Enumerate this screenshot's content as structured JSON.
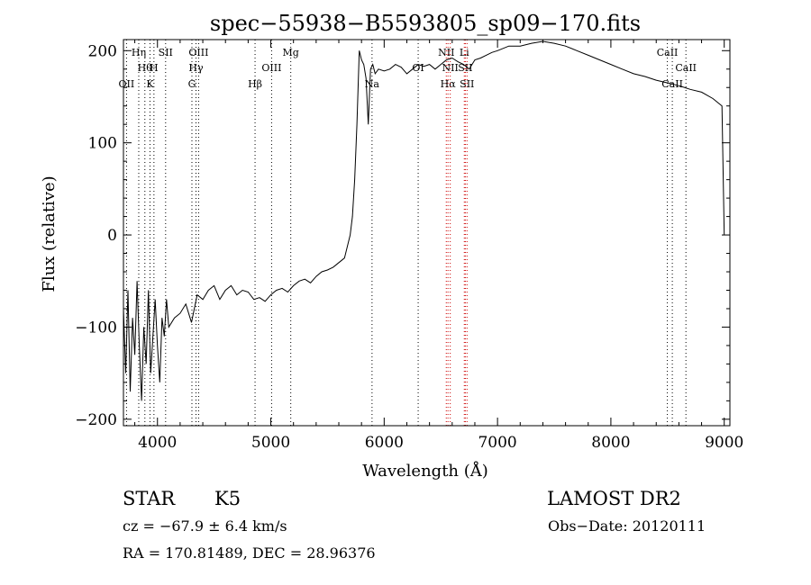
{
  "chart_data": {
    "type": "line",
    "title": "spec−55938−B5593805_sp09−170.fits",
    "xlabel": "Wavelength (Å)",
    "ylabel": "Flux (relative)",
    "xlim": [
      3700,
      9050
    ],
    "ylim": [
      -207,
      212
    ],
    "grid": false,
    "x_ticks": [
      {
        "value": 4000,
        "label": "4000"
      },
      {
        "value": 5000,
        "label": "5000"
      },
      {
        "value": 6000,
        "label": "6000"
      },
      {
        "value": 7000,
        "label": "7000"
      },
      {
        "value": 8000,
        "label": "8000"
      },
      {
        "value": 9000,
        "label": "9000"
      }
    ],
    "y_ticks": [
      {
        "value": -200,
        "label": "−200"
      },
      {
        "value": -100,
        "label": "−100"
      },
      {
        "value": 0,
        "label": "0"
      },
      {
        "value": 100,
        "label": "100"
      },
      {
        "value": 200,
        "label": "200"
      }
    ],
    "series": [
      {
        "x": [
          3700,
          3720,
          3740,
          3760,
          3780,
          3800,
          3820,
          3840,
          3860,
          3880,
          3900,
          3920,
          3940,
          3960,
          3980,
          4000,
          4020,
          4040,
          4060,
          4080,
          4100,
          4150,
          4200,
          4250,
          4300,
          4350,
          4400,
          4450,
          4500,
          4550,
          4600,
          4650,
          4700,
          4750,
          4800,
          4850,
          4900,
          4950,
          5000,
          5050,
          5100,
          5150,
          5200,
          5250,
          5300,
          5350,
          5400,
          5450,
          5500,
          5550,
          5600,
          5650,
          5680,
          5700,
          5720,
          5740,
          5760,
          5780,
          5800,
          5820,
          5840,
          5860,
          5880,
          5900,
          5920,
          5950,
          6000,
          6050,
          6100,
          6150,
          6200,
          6250,
          6300,
          6350,
          6400,
          6450,
          6500,
          6550,
          6600,
          6650,
          6700,
          6750,
          6800,
          6850,
          6900,
          6950,
          7000,
          7100,
          7200,
          7300,
          7400,
          7500,
          7600,
          7700,
          7800,
          7900,
          8000,
          8100,
          8200,
          8300,
          8400,
          8500,
          8600,
          8700,
          8800,
          8900,
          8980,
          9000
        ],
        "y": [
          -80,
          -150,
          -60,
          -170,
          -90,
          -130,
          -50,
          -120,
          -180,
          -100,
          -140,
          -60,
          -150,
          -110,
          -70,
          -120,
          -160,
          -90,
          -110,
          -70,
          -100,
          -90,
          -85,
          -75,
          -95,
          -65,
          -70,
          -60,
          -55,
          -70,
          -60,
          -55,
          -65,
          -60,
          -62,
          -70,
          -68,
          -72,
          -65,
          -60,
          -58,
          -62,
          -55,
          -50,
          -48,
          -52,
          -45,
          -40,
          -38,
          -35,
          -30,
          -25,
          -10,
          0,
          20,
          60,
          120,
          200,
          190,
          185,
          170,
          120,
          180,
          185,
          175,
          180,
          178,
          180,
          185,
          182,
          175,
          180,
          185,
          183,
          185,
          180,
          185,
          190,
          192,
          188,
          185,
          180,
          190,
          192,
          195,
          198,
          200,
          205,
          205,
          208,
          210,
          208,
          205,
          200,
          195,
          190,
          185,
          180,
          175,
          172,
          168,
          165,
          162,
          158,
          155,
          148,
          140,
          0
        ]
      }
    ],
    "lines": [
      {
        "x": 3727,
        "color": "#000000",
        "labels": [
          {
            "text": "OII",
            "row": 3
          }
        ]
      },
      {
        "x": 3835,
        "color": "#000000",
        "labels": [
          {
            "text": "Hη",
            "row": 1
          }
        ]
      },
      {
        "x": 3889,
        "color": "#000000",
        "labels": [
          {
            "text": "Hθ",
            "row": 2
          }
        ]
      },
      {
        "x": 3934,
        "color": "#000000",
        "labels": [
          {
            "text": "K",
            "row": 3
          }
        ]
      },
      {
        "x": 3969,
        "color": "#000000",
        "labels": [
          {
            "text": "H",
            "row": 2
          }
        ]
      },
      {
        "x": 4072,
        "color": "#000000",
        "labels": [
          {
            "text": "SII",
            "row": 1
          }
        ]
      },
      {
        "x": 4304,
        "color": "#000000",
        "labels": [
          {
            "text": "G",
            "row": 3
          }
        ]
      },
      {
        "x": 4340,
        "color": "#000000",
        "labels": [
          {
            "text": "Hγ",
            "row": 2
          }
        ]
      },
      {
        "x": 4363,
        "color": "#000000",
        "labels": [
          {
            "text": "OIII",
            "row": 1
          }
        ]
      },
      {
        "x": 4861,
        "color": "#000000",
        "labels": [
          {
            "text": "Hβ",
            "row": 3
          }
        ]
      },
      {
        "x": 5007,
        "color": "#000000",
        "labels": [
          {
            "text": "OIII",
            "row": 2
          }
        ]
      },
      {
        "x": 5176,
        "color": "#000000",
        "labels": [
          {
            "text": "Mg",
            "row": 1
          }
        ]
      },
      {
        "x": 5893,
        "color": "#000000",
        "labels": [
          {
            "text": "Na",
            "row": 3
          }
        ]
      },
      {
        "x": 6300,
        "color": "#000000",
        "labels": [
          {
            "text": "OI",
            "row": 2
          }
        ]
      },
      {
        "x": 6548,
        "color": "#cc0000",
        "labels": [
          {
            "text": "NII",
            "row": 1
          }
        ]
      },
      {
        "x": 6563,
        "color": "#cc0000",
        "labels": [
          {
            "text": "Hα",
            "row": 3
          }
        ]
      },
      {
        "x": 6583,
        "color": "#cc0000",
        "labels": [
          {
            "text": "NII",
            "row": 2
          }
        ]
      },
      {
        "x": 6707,
        "color": "#cc0000",
        "labels": [
          {
            "text": "Li",
            "row": 1
          }
        ]
      },
      {
        "x": 6716,
        "color": "#cc0000",
        "labels": [
          {
            "text": "SII",
            "row": 2
          }
        ]
      },
      {
        "x": 6731,
        "color": "#cc0000",
        "labels": [
          {
            "text": "SII",
            "row": 3
          }
        ]
      },
      {
        "x": 8498,
        "color": "#000000",
        "labels": [
          {
            "text": "CaII",
            "row": 1
          }
        ]
      },
      {
        "x": 8542,
        "color": "#000000",
        "labels": [
          {
            "text": "CaII",
            "row": 3
          }
        ]
      },
      {
        "x": 8662,
        "color": "#000000",
        "labels": [
          {
            "text": "CaII",
            "row": 2
          }
        ]
      }
    ]
  },
  "info": {
    "object_type": "STAR",
    "subclass": "K5",
    "survey": "LAMOST DR2",
    "cz": "cz = −67.9 ± 6.4 km/s",
    "obs_date": "Obs−Date: 20120111",
    "coords": "RA = 170.81489, DEC =  28.96376"
  }
}
